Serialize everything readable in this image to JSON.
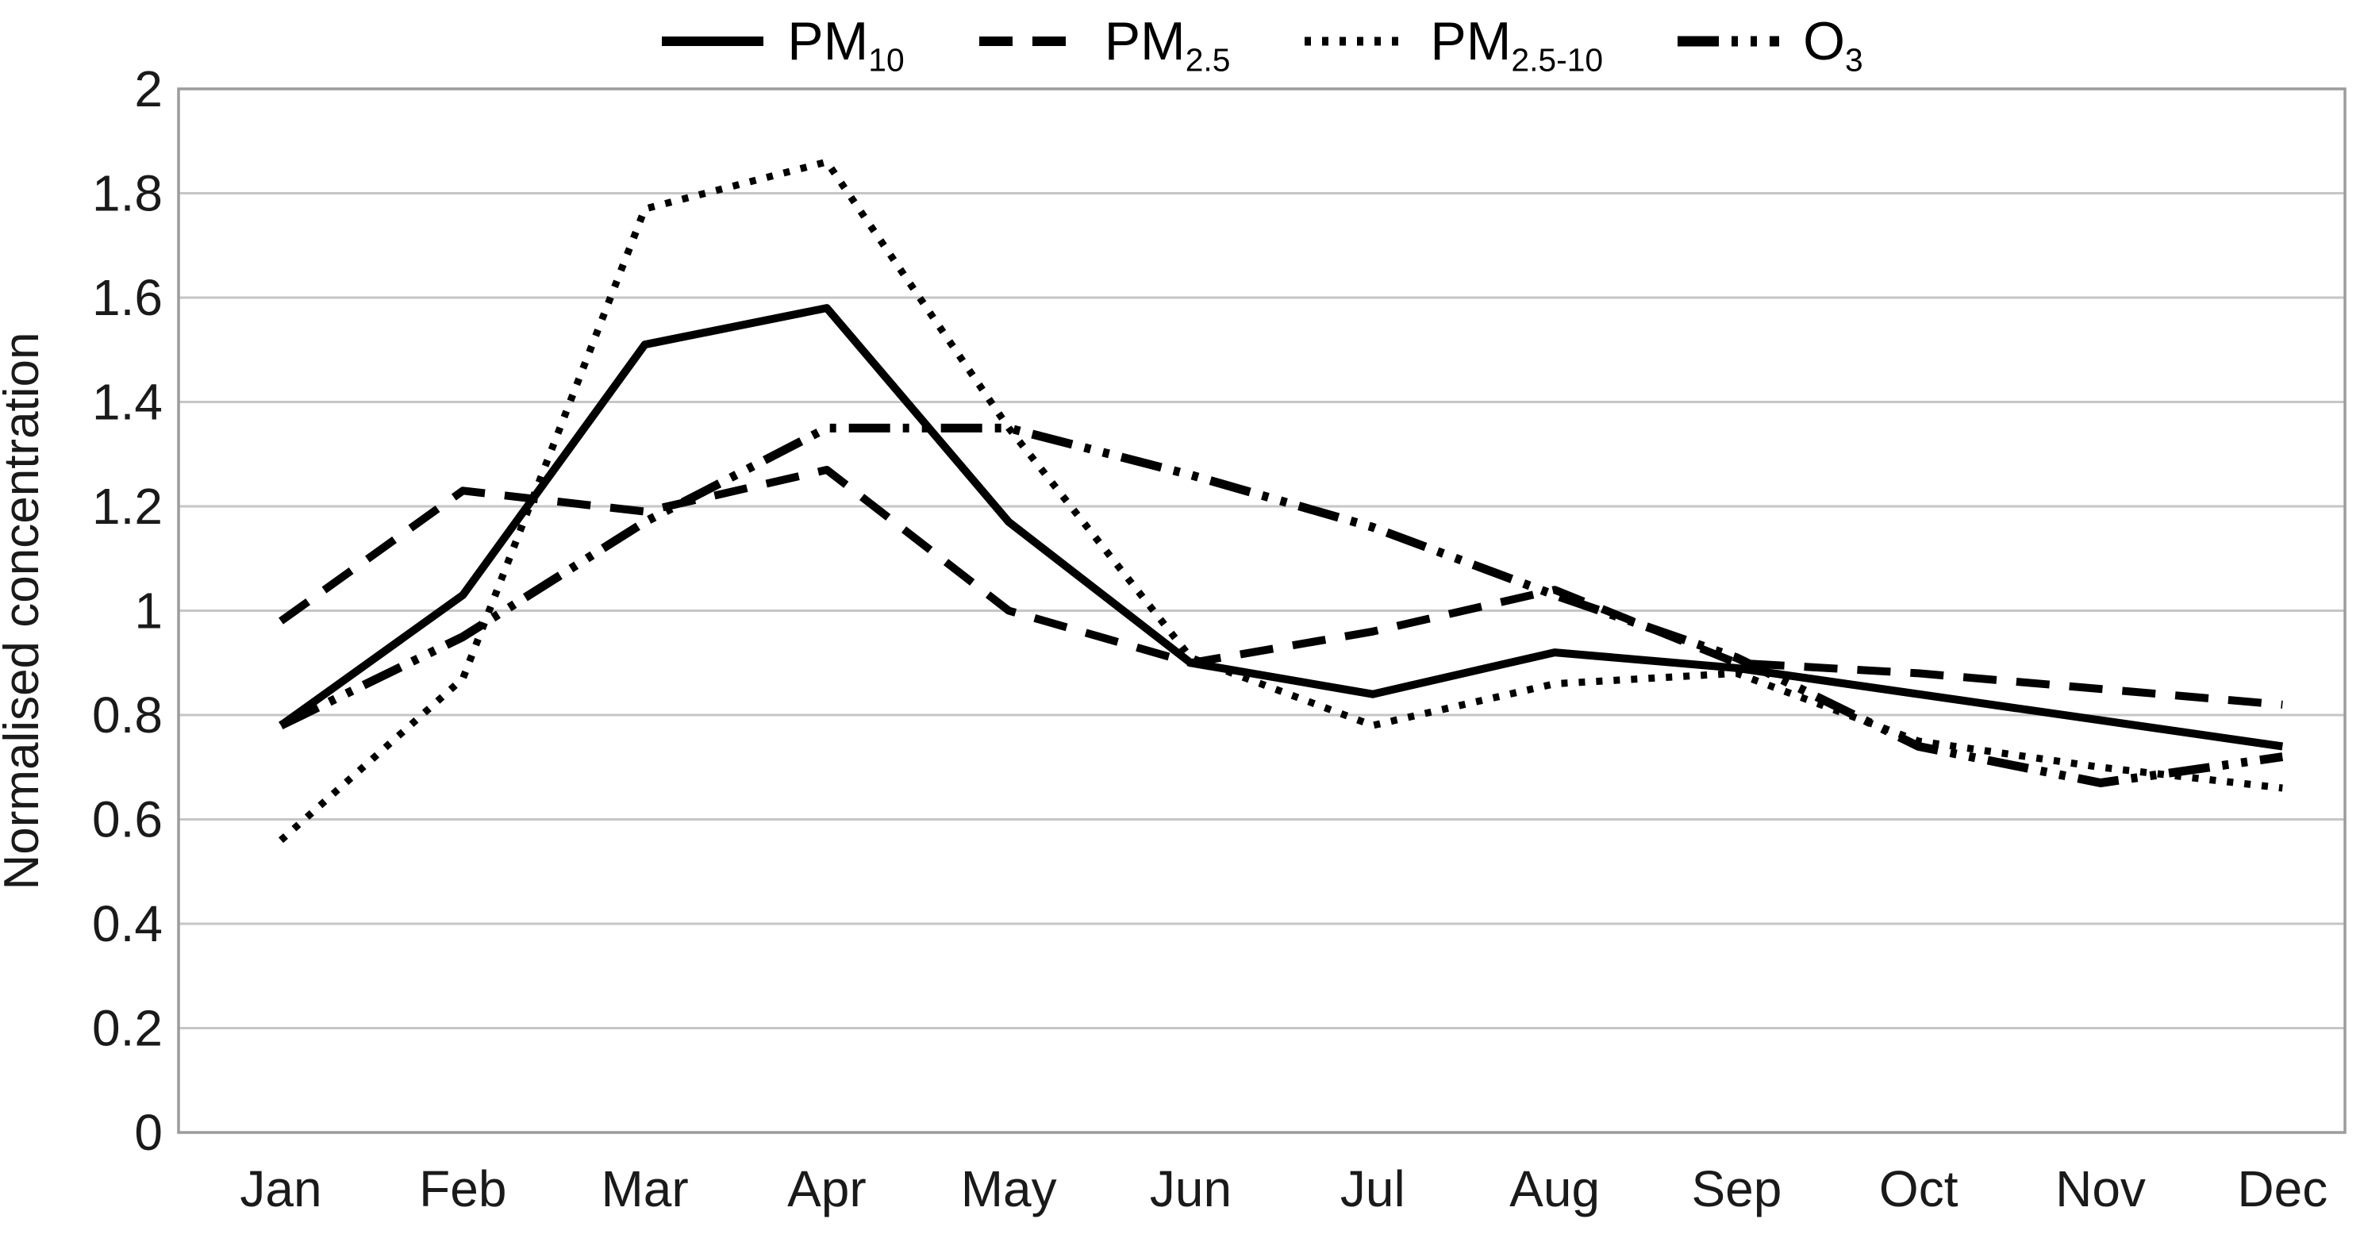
{
  "chart_data": {
    "type": "line",
    "title": "",
    "xlabel": "",
    "ylabel": "Normalised concentration",
    "x_categories": [
      "Jan",
      "Feb",
      "Mar",
      "Apr",
      "May",
      "Jun",
      "Jul",
      "Aug",
      "Sep",
      "Oct",
      "Nov",
      "Dec"
    ],
    "y_ticks": [
      "2",
      "1.8",
      "1.6",
      "1.4",
      "1.2",
      "1",
      "0.8",
      "0.6",
      "0.4",
      "0.2",
      "0"
    ],
    "ylim": [
      0,
      2
    ],
    "grid": "horizontal",
    "legend_position": "top-center",
    "series": [
      {
        "name": "PM10",
        "label_main": "PM",
        "label_sub": "10",
        "style": "solid",
        "color": "#000000",
        "values": [
          0.78,
          1.03,
          1.51,
          1.58,
          1.17,
          0.9,
          0.84,
          0.92,
          0.89,
          0.84,
          0.79,
          0.74
        ]
      },
      {
        "name": "PM2.5",
        "label_main": "PM",
        "label_sub": "2.5",
        "style": "dashed",
        "color": "#000000",
        "values": [
          0.98,
          1.23,
          1.19,
          1.27,
          1.0,
          0.9,
          0.96,
          1.04,
          0.9,
          0.88,
          0.85,
          0.82
        ]
      },
      {
        "name": "PM2.5-10",
        "label_main": "PM",
        "label_sub": "2.5-10",
        "style": "dotted",
        "color": "#000000",
        "values": [
          0.56,
          0.87,
          1.77,
          1.86,
          1.35,
          0.91,
          0.78,
          0.86,
          0.88,
          0.75,
          0.7,
          0.66
        ]
      },
      {
        "name": "O3",
        "label_main": "O",
        "label_sub": "3",
        "style": "dash-dot-dot",
        "color": "#000000",
        "values": [
          0.78,
          0.95,
          1.17,
          1.35,
          1.35,
          1.26,
          1.16,
          1.03,
          0.91,
          0.74,
          0.67,
          0.72
        ]
      }
    ]
  },
  "colors": {
    "background": "#ffffff",
    "line": "#000000",
    "gridline": "#c6c6c6",
    "axis_border": "#9c9c9c",
    "text": "#1a1a1a"
  }
}
